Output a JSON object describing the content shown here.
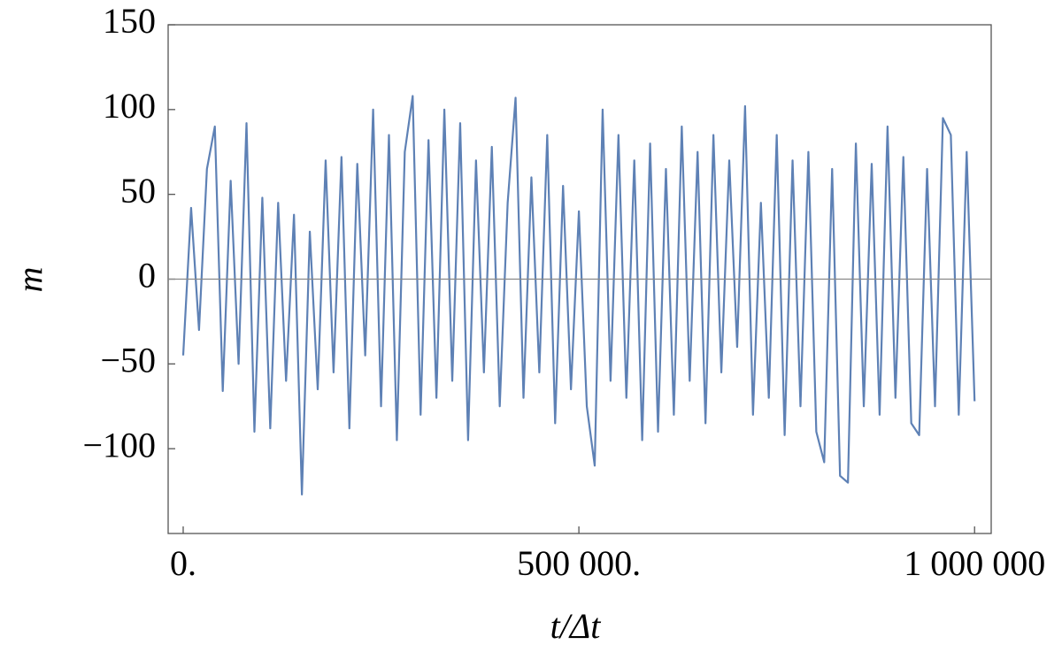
{
  "chart_data": {
    "type": "line",
    "x_label": "t/Δt",
    "y_label": "m",
    "x": [
      0,
      10000,
      20000,
      30000,
      40000,
      50000,
      60000,
      70000,
      80000,
      90000,
      100000,
      110000,
      120000,
      130000,
      140000,
      150000,
      160000,
      170000,
      180000,
      190000,
      200000,
      210000,
      220000,
      230000,
      240000,
      250000,
      260000,
      270000,
      280000,
      290000,
      300000,
      310000,
      320000,
      330000,
      340000,
      350000,
      360000,
      370000,
      380000,
      390000,
      400000,
      410000,
      420000,
      430000,
      440000,
      450000,
      460000,
      470000,
      480000,
      490000,
      500000,
      510000,
      520000,
      530000,
      540000,
      550000,
      560000,
      570000,
      580000,
      590000,
      600000,
      610000,
      620000,
      630000,
      640000,
      650000,
      660000,
      670000,
      680000,
      690000,
      700000,
      710000,
      720000,
      730000,
      740000,
      750000,
      760000,
      770000,
      780000,
      790000,
      800000,
      810000,
      820000,
      830000,
      840000,
      850000,
      860000,
      870000,
      880000,
      890000,
      900000,
      910000,
      920000,
      930000,
      940000,
      950000,
      960000,
      970000,
      980000,
      990000,
      1000000
    ],
    "series": [
      {
        "color": "#5e81b5",
        "values": [
          -45,
          42,
          -30,
          65,
          90,
          -66,
          58,
          -50,
          92,
          -90,
          48,
          -88,
          45,
          -60,
          38,
          -127,
          28,
          -65,
          70,
          -55,
          72,
          -88,
          68,
          -45,
          100,
          -75,
          85,
          -95,
          75,
          108,
          -80,
          82,
          -70,
          100,
          -60,
          92,
          -95,
          70,
          -55,
          78,
          -75,
          45,
          107,
          -70,
          60,
          -55,
          85,
          -85,
          55,
          -65,
          40,
          -75,
          -110,
          100,
          -60,
          85,
          -70,
          70,
          -95,
          80,
          -90,
          65,
          -80,
          90,
          -60,
          75,
          -85,
          85,
          -55,
          70,
          -40,
          102,
          -80,
          45,
          -70,
          85,
          -92,
          70,
          -75,
          75,
          -90,
          -108,
          65,
          -116,
          -120,
          80,
          -75,
          68,
          -80,
          90,
          -70,
          72,
          -85,
          -92,
          65,
          -75,
          95,
          85,
          -80,
          75,
          -72
        ]
      }
    ],
    "xlim": [
      -19000,
      1021000
    ],
    "ylim": [
      -150,
      150
    ],
    "xticks": [
      {
        "value": 0,
        "label": "0."
      },
      {
        "value": 500000,
        "label": "500 000."
      },
      {
        "value": 1000000,
        "label": "1 000 000"
      }
    ],
    "yticks": [
      {
        "value": -100,
        "label": "−100"
      },
      {
        "value": -50,
        "label": "−50"
      },
      0,
      50,
      100,
      150
    ]
  }
}
